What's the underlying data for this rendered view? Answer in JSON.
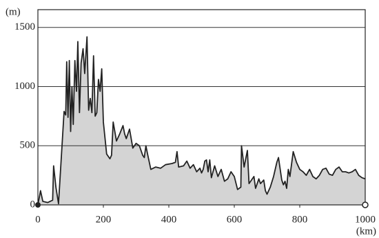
{
  "chart_data": {
    "type": "area",
    "y_label": "(m)",
    "x_label": "(km)",
    "x": [
      0,
      8,
      15,
      30,
      45,
      48,
      55,
      63,
      80,
      85,
      88,
      92,
      96,
      100,
      104,
      108,
      113,
      118,
      122,
      127,
      132,
      138,
      143,
      150,
      155,
      160,
      165,
      170,
      175,
      180,
      185,
      190,
      195,
      200,
      210,
      220,
      225,
      230,
      240,
      250,
      260,
      265,
      270,
      280,
      290,
      300,
      310,
      320,
      325,
      330,
      335,
      345,
      360,
      375,
      390,
      410,
      420,
      425,
      430,
      445,
      455,
      465,
      475,
      485,
      495,
      500,
      505,
      510,
      515,
      520,
      525,
      530,
      540,
      550,
      560,
      570,
      580,
      590,
      600,
      610,
      620,
      622,
      630,
      640,
      645,
      660,
      665,
      675,
      680,
      690,
      695,
      700,
      710,
      720,
      730,
      735,
      745,
      750,
      755,
      760,
      765,
      770,
      780,
      790,
      800,
      810,
      820,
      830,
      840,
      850,
      860,
      870,
      880,
      890,
      900,
      910,
      920,
      930,
      940,
      950,
      960,
      970,
      980,
      990,
      1000
    ],
    "values": [
      0,
      120,
      30,
      20,
      40,
      330,
      150,
      10,
      790,
      760,
      1210,
      740,
      1220,
      620,
      1000,
      680,
      1220,
      960,
      1380,
      780,
      1200,
      1320,
      1110,
      1420,
      800,
      900,
      780,
      1260,
      750,
      780,
      1060,
      960,
      1150,
      700,
      430,
      390,
      420,
      700,
      540,
      600,
      670,
      600,
      560,
      640,
      480,
      520,
      500,
      420,
      400,
      500,
      430,
      300,
      320,
      310,
      340,
      350,
      360,
      450,
      320,
      330,
      370,
      310,
      340,
      280,
      310,
      270,
      300,
      370,
      380,
      280,
      380,
      230,
      330,
      240,
      300,
      200,
      220,
      280,
      240,
      130,
      150,
      500,
      320,
      460,
      180,
      240,
      140,
      220,
      180,
      210,
      120,
      90,
      150,
      240,
      360,
      400,
      210,
      170,
      200,
      140,
      300,
      240,
      450,
      360,
      300,
      280,
      250,
      300,
      240,
      220,
      250,
      300,
      310,
      260,
      250,
      300,
      320,
      280,
      280,
      270,
      280,
      300,
      250,
      230,
      220
    ],
    "fill": "#d4d4d4",
    "color": "#222222",
    "xlim": [
      0,
      1000
    ],
    "xticks": [
      0,
      200,
      400,
      600,
      800,
      1000
    ],
    "ylim": [
      0,
      1650
    ],
    "yticks": [
      0,
      500,
      1000,
      1500
    ],
    "grid": true
  }
}
